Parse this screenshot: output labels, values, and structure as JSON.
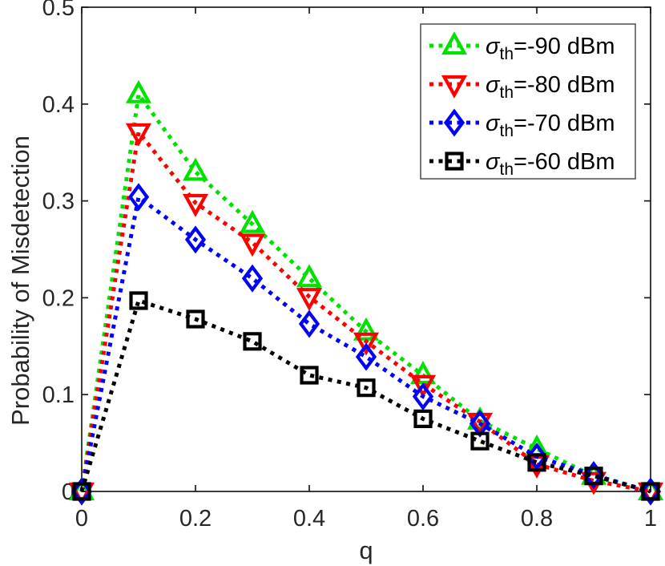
{
  "figure": {
    "background": "#ffffff",
    "axis_color": "#1a1a1a",
    "tick_label_color": "#262626",
    "legend_border_color": "#4d4d4d"
  },
  "chart_data": {
    "type": "line",
    "title": "",
    "xlabel": "q",
    "ylabel": "Probability of Misdetection",
    "xlim": [
      0,
      1
    ],
    "ylim": [
      0,
      0.5
    ],
    "grid": false,
    "legend_position": "top-right",
    "line_style": "dotted",
    "xticks": {
      "values": [
        0,
        0.2,
        0.4,
        0.6,
        0.8,
        1
      ],
      "labels": [
        "0",
        "0.2",
        "0.4",
        "0.6",
        "0.8",
        "1"
      ]
    },
    "yticks": {
      "values": [
        0,
        0.1,
        0.2,
        0.3,
        0.4,
        0.5
      ],
      "labels": [
        "0",
        "0.1",
        "0.2",
        "0.3",
        "0.4",
        "0.5"
      ]
    },
    "x": [
      0,
      0.1,
      0.2,
      0.3,
      0.4,
      0.5,
      0.6,
      0.7,
      0.8,
      0.9,
      1.0
    ],
    "series": [
      {
        "name": "sigma_th=-90 dBm",
        "legend": {
          "symbol": "σ",
          "subscript": "th",
          "text": "=-90 dBm"
        },
        "color": "#00e100",
        "marker": "triangle-up",
        "values": [
          0,
          0.41,
          0.33,
          0.276,
          0.22,
          0.165,
          0.12,
          0.073,
          0.044,
          0.016,
          0
        ]
      },
      {
        "name": "sigma_th=-80 dBm",
        "legend": {
          "symbol": "σ",
          "subscript": "th",
          "text": "=-80 dBm"
        },
        "color": "#ff0000",
        "marker": "triangle-down",
        "values": [
          0,
          0.371,
          0.298,
          0.257,
          0.201,
          0.155,
          0.111,
          0.072,
          0.028,
          0.011,
          0
        ]
      },
      {
        "name": "sigma_th=-70 dBm",
        "legend": {
          "symbol": "σ",
          "subscript": "th",
          "text": "=-70 dBm"
        },
        "color": "#0000ff",
        "marker": "diamond",
        "values": [
          0,
          0.304,
          0.26,
          0.22,
          0.173,
          0.139,
          0.098,
          0.07,
          0.036,
          0.017,
          0
        ]
      },
      {
        "name": "sigma_th=-60 dBm",
        "legend": {
          "symbol": "σ",
          "subscript": "th",
          "text": "=-60 dBm"
        },
        "color": "#000000",
        "marker": "square",
        "values": [
          0,
          0.197,
          0.178,
          0.155,
          0.12,
          0.107,
          0.075,
          0.052,
          0.03,
          0.016,
          0
        ]
      }
    ]
  }
}
